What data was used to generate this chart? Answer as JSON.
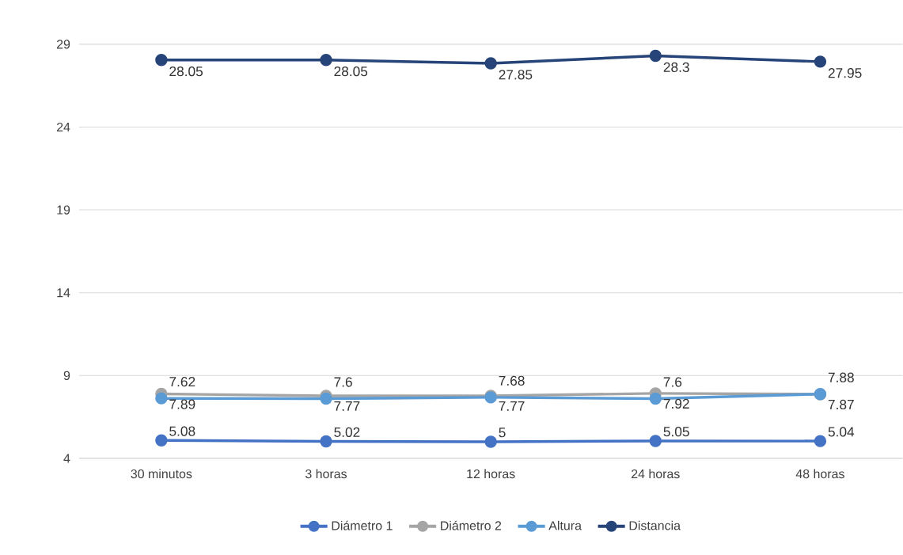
{
  "chart_data": {
    "type": "line",
    "categories": [
      "30 minutos",
      "3 horas",
      "12 horas",
      "24 horas",
      "48 horas"
    ],
    "series": [
      {
        "name": "Diámetro 1",
        "color": "#4472c4",
        "values": [
          5.08,
          5.02,
          5,
          5.05,
          5.04
        ]
      },
      {
        "name": "Diámetro 2",
        "color": "#a5a5a5",
        "values": [
          7.89,
          7.77,
          7.77,
          7.92,
          7.87
        ]
      },
      {
        "name": "Altura",
        "color": "#5b9bd5",
        "values": [
          7.62,
          7.6,
          7.68,
          7.6,
          7.88
        ]
      },
      {
        "name": "Distancia",
        "color": "#264478",
        "values": [
          28.05,
          28.05,
          27.85,
          28.3,
          27.95
        ]
      }
    ],
    "ylim": [
      4,
      29
    ],
    "yticks": [
      4,
      9,
      14,
      19,
      24,
      29
    ],
    "grid": "y",
    "legend": "bottom",
    "marker": "circle",
    "line_style": "solid",
    "data_labels": true
  }
}
